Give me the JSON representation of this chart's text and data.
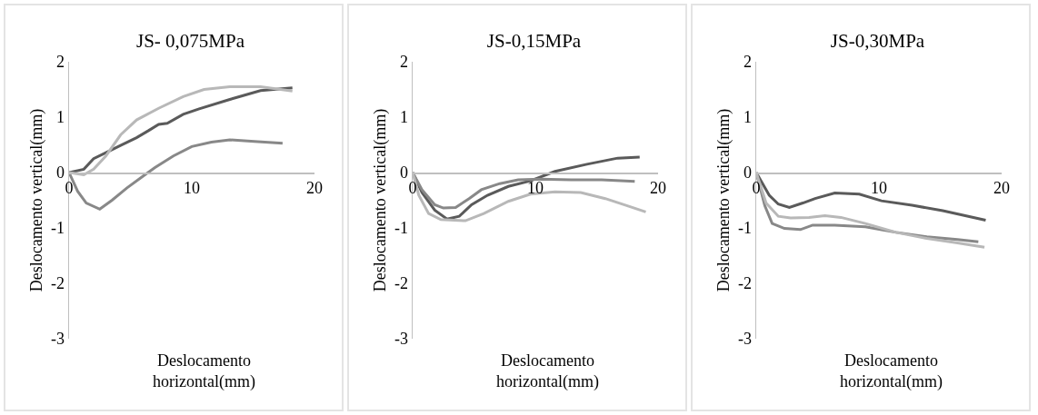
{
  "chart_data": [
    {
      "type": "line",
      "title": "JS- 0,075MPa",
      "xlabel": "Deslocamento horizontal(mm)",
      "ylabel": "Deslocamento vertical(mm)",
      "xlim": [
        0,
        20
      ],
      "xticks": [
        0,
        10,
        20
      ],
      "ylim": [
        -3,
        2
      ],
      "yticks": [
        -3,
        -2,
        -1,
        0,
        1,
        2
      ],
      "grid": false,
      "marker": "none",
      "line_style": "solid",
      "series": [
        {
          "color": "#5a5a5a",
          "x": [
            0,
            1.2,
            2,
            3,
            4.2,
            5.5,
            6.5,
            7.3,
            8,
            9.3,
            10.6,
            13.1,
            15.6,
            18.2
          ],
          "values": [
            0,
            0.06,
            0.25,
            0.36,
            0.49,
            0.63,
            0.76,
            0.87,
            0.89,
            1.05,
            1.15,
            1.32,
            1.48,
            1.53
          ]
        },
        {
          "color": "#888888",
          "x": [
            0,
            0.7,
            1.4,
            2.5,
            3.5,
            4.7,
            6,
            7,
            8.5,
            10,
            11.6,
            13.1,
            15.1,
            17.4
          ],
          "values": [
            0,
            -0.34,
            -0.55,
            -0.66,
            -0.5,
            -0.28,
            -0.07,
            0.09,
            0.3,
            0.47,
            0.55,
            0.59,
            0.56,
            0.53
          ]
        },
        {
          "color": "#b8b8b8",
          "x": [
            0,
            1.2,
            2,
            3,
            4.2,
            5.5,
            7.3,
            9.3,
            11,
            13.1,
            15.6,
            18.2
          ],
          "values": [
            0,
            -0.04,
            0.06,
            0.3,
            0.68,
            0.95,
            1.16,
            1.37,
            1.5,
            1.55,
            1.55,
            1.47
          ]
        }
      ]
    },
    {
      "type": "line",
      "title": "JS-0,15MPa",
      "xlabel": "Deslocamento horizontal(mm)",
      "ylabel": "Deslocamento vertical(mm)",
      "xlim": [
        0,
        20
      ],
      "xticks": [
        0,
        10,
        20
      ],
      "ylim": [
        -3,
        2
      ],
      "yticks": [
        -3,
        -2,
        -1,
        0,
        1,
        2
      ],
      "grid": false,
      "marker": "none",
      "line_style": "solid",
      "series": [
        {
          "color": "#5a5a5a",
          "x": [
            0,
            0.76,
            1.8,
            2.8,
            3.8,
            4.8,
            6.1,
            7.8,
            9.6,
            11.6,
            14.2,
            16.7,
            18.5
          ],
          "values": [
            0,
            -0.36,
            -0.68,
            -0.84,
            -0.79,
            -0.58,
            -0.41,
            -0.25,
            -0.15,
            0.02,
            0.15,
            0.26,
            0.28
          ]
        },
        {
          "color": "#888888",
          "x": [
            0,
            0.76,
            1.8,
            2.5,
            3.5,
            4.6,
            5.6,
            7.1,
            8.6,
            10.4,
            12.9,
            15.4,
            18.1
          ],
          "values": [
            0,
            -0.31,
            -0.58,
            -0.64,
            -0.63,
            -0.47,
            -0.31,
            -0.2,
            -0.13,
            -0.12,
            -0.13,
            -0.13,
            -0.16
          ]
        },
        {
          "color": "#b8b8b8",
          "x": [
            0,
            0.5,
            1.3,
            2.3,
            4.3,
            5.8,
            7.8,
            9.6,
            11.6,
            13.7,
            15.7,
            17.5,
            19
          ],
          "values": [
            0,
            -0.41,
            -0.74,
            -0.85,
            -0.87,
            -0.74,
            -0.52,
            -0.39,
            -0.35,
            -0.36,
            -0.47,
            -0.6,
            -0.71
          ]
        }
      ]
    },
    {
      "type": "line",
      "title": "JS-0,30MPa",
      "xlabel": "Deslocamento horizontal(mm)",
      "ylabel": "Deslocamento vertical(mm)",
      "xlim": [
        0,
        20
      ],
      "xticks": [
        0,
        10,
        20
      ],
      "ylim": [
        -3,
        2
      ],
      "yticks": [
        -3,
        -2,
        -1,
        0,
        1,
        2
      ],
      "grid": false,
      "marker": "none",
      "line_style": "solid",
      "series": [
        {
          "color": "#5a5a5a",
          "x": [
            0,
            1.06,
            1.8,
            2.7,
            3.8,
            4.8,
            6.4,
            8.4,
            10.2,
            12.7,
            15.2,
            18.7
          ],
          "values": [
            0,
            -0.41,
            -0.57,
            -0.63,
            -0.55,
            -0.47,
            -0.37,
            -0.39,
            -0.51,
            -0.59,
            -0.69,
            -0.86
          ]
        },
        {
          "color": "#888888",
          "x": [
            0,
            0.7,
            1.3,
            2.3,
            3.6,
            4.6,
            6.4,
            8.9,
            11.4,
            13.9,
            16.4,
            18.1
          ],
          "values": [
            0,
            -0.6,
            -0.92,
            -1.01,
            -1.03,
            -0.95,
            -0.95,
            -0.98,
            -1.08,
            -1.16,
            -1.21,
            -1.25
          ]
        },
        {
          "color": "#b8b8b8",
          "x": [
            0,
            0.8,
            1.8,
            2.8,
            4.3,
            5.6,
            6.9,
            8.9,
            11.4,
            13.9,
            16.4,
            18.6
          ],
          "values": [
            0,
            -0.55,
            -0.79,
            -0.82,
            -0.81,
            -0.78,
            -0.81,
            -0.92,
            -1.08,
            -1.19,
            -1.27,
            -1.35
          ]
        }
      ]
    }
  ]
}
